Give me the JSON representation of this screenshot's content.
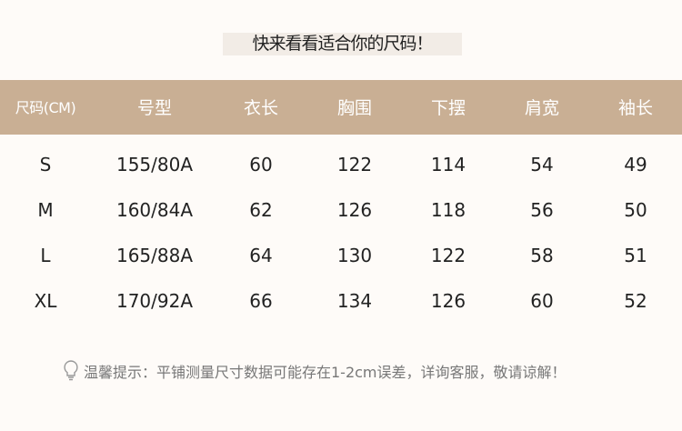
{
  "title": "快来看看适合你的尺码！",
  "table": {
    "headers": [
      "尺码(CM)",
      "号型",
      "衣长",
      "胸围",
      "下摆",
      "肩宽",
      "袖长"
    ],
    "rows": [
      [
        "S",
        "155/80A",
        "60",
        "122",
        "114",
        "54",
        "49"
      ],
      [
        "M",
        "160/84A",
        "62",
        "126",
        "118",
        "56",
        "50"
      ],
      [
        "L",
        "165/88A",
        "64",
        "130",
        "122",
        "58",
        "51"
      ],
      [
        "XL",
        "170/92A",
        "66",
        "134",
        "126",
        "60",
        "52"
      ]
    ]
  },
  "tip": {
    "icon": "lightbulb-icon",
    "text": "温馨提示：平铺测量尺寸数据可能存在1-2cm误差，详询客服，敬请谅解！"
  },
  "colors": {
    "header_bg": "#c9af94",
    "background": "#fefbf8"
  }
}
